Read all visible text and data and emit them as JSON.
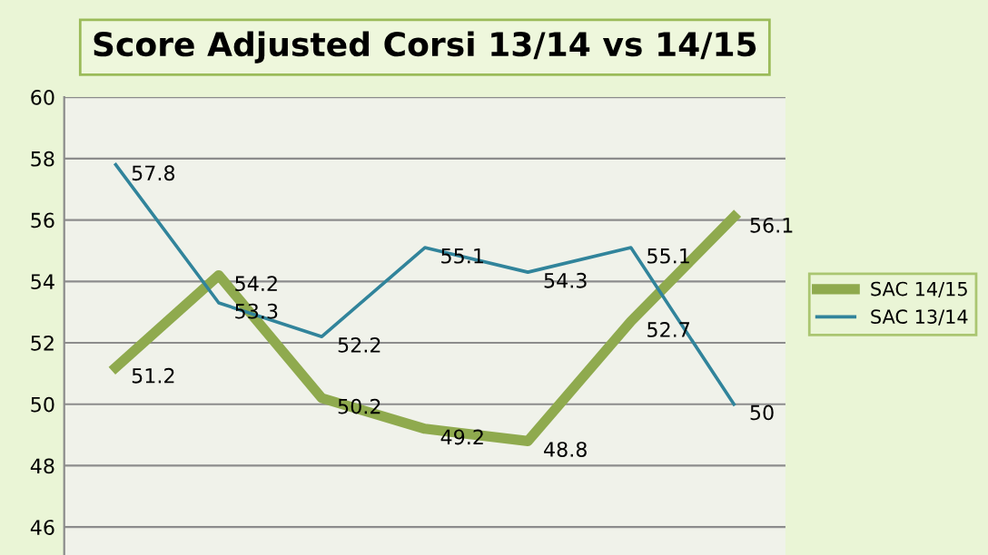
{
  "chart_data": {
    "type": "line",
    "title": "Score Adjusted Corsi 13/14 vs 14/15",
    "categories": [
      null,
      null,
      null,
      null,
      null,
      null,
      null
    ],
    "series": [
      {
        "name": "SAC 14/15",
        "color": "#8faa4e",
        "values": [
          51.2,
          54.2,
          50.2,
          49.2,
          48.8,
          52.7,
          56.1
        ]
      },
      {
        "name": "SAC 13/14",
        "color": "#31849b",
        "values": [
          57.8,
          53.3,
          52.2,
          55.1,
          54.3,
          55.1,
          50
        ]
      }
    ],
    "ylim": [
      45,
      60
    ],
    "yticks": [
      46,
      48,
      50,
      52,
      54,
      56,
      58,
      60
    ],
    "grid": "y",
    "legend": "right",
    "data_labels": true
  }
}
